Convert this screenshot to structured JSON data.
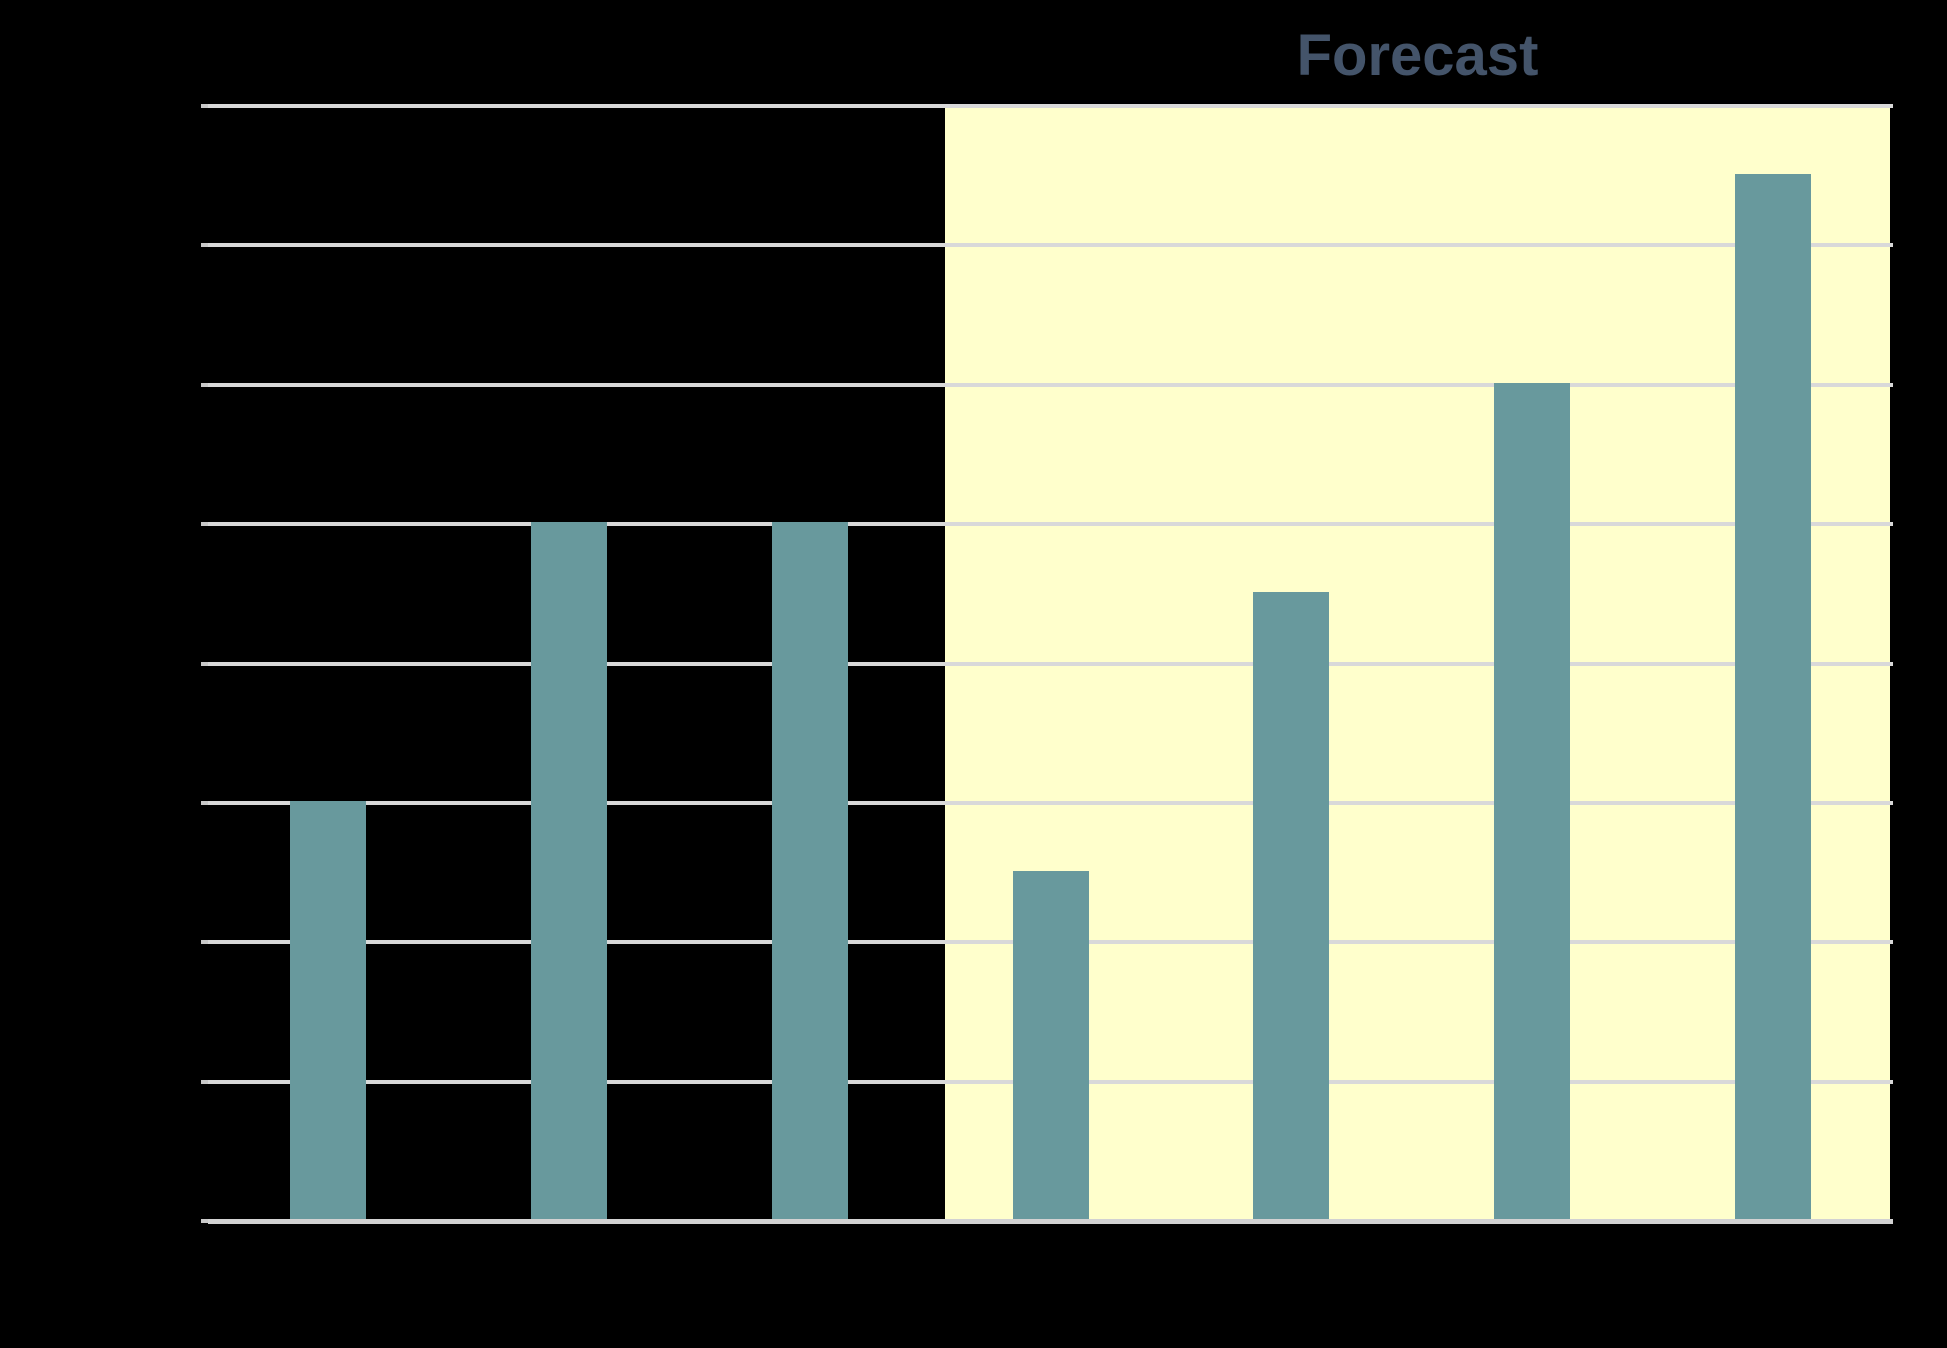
{
  "chart_data": {
    "type": "bar",
    "title": "",
    "xlabel": "",
    "ylabel": "",
    "annotation": "Forecast",
    "annotation_position": "top, centered above forecast region",
    "categories": [
      "",
      "",
      "",
      "",
      "",
      "",
      ""
    ],
    "values": [
      3,
      5,
      5,
      2.5,
      4.5,
      6,
      7.5
    ],
    "ylim": [
      0,
      8
    ],
    "gridline_interval": 1,
    "grid": "on",
    "legend": "none",
    "axis_tick_labels_visible": false,
    "forecast_region": {
      "label": "Forecast",
      "covers_last_n_bars": 4
    },
    "colors": {
      "bar": "#68999D",
      "forecast_fill": "#FFFFCC",
      "gridline": "#D9D9D9",
      "axis_line": "#D2D2D2",
      "tick": "#C9C9C9",
      "annotation_text": "#44546A",
      "background": "#000000"
    }
  }
}
